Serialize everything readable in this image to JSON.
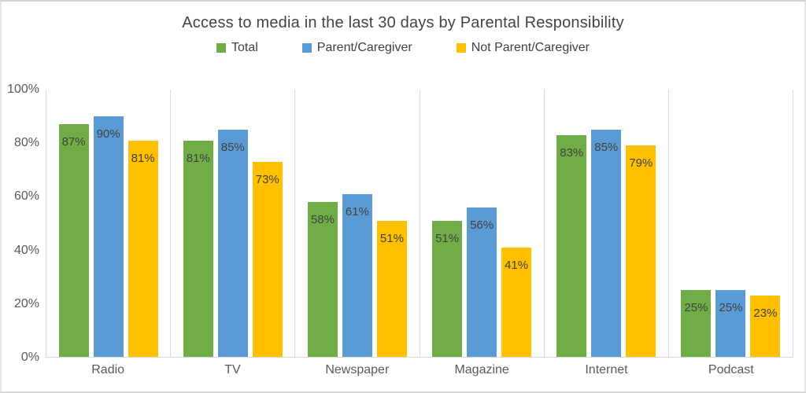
{
  "chart_data": {
    "type": "bar",
    "title": "Access to media in the last 30 days by Parental Responsibility",
    "xlabel": "",
    "ylabel": "",
    "ylim": [
      0,
      100
    ],
    "yticks": [
      {
        "value": 0,
        "label": "0%"
      },
      {
        "value": 20,
        "label": "20%"
      },
      {
        "value": 40,
        "label": "40%"
      },
      {
        "value": 60,
        "label": "60%"
      },
      {
        "value": 80,
        "label": "80%"
      },
      {
        "value": 100,
        "label": "100%"
      }
    ],
    "categories": [
      "Radio",
      "TV",
      "Newspaper",
      "Magazine",
      "Internet",
      "Podcast"
    ],
    "series": [
      {
        "name": "Total",
        "color": "#70AD47",
        "values": [
          87,
          81,
          58,
          51,
          83,
          25
        ]
      },
      {
        "name": "Parent/Caregiver",
        "color": "#5B9BD5",
        "values": [
          90,
          85,
          61,
          56,
          85,
          25
        ]
      },
      {
        "name": "Not Parent/Caregiver",
        "color": "#FFC000",
        "values": [
          81,
          73,
          51,
          41,
          79,
          23
        ]
      }
    ],
    "data_label_suffix": "%",
    "data_labels": "inside-end",
    "legend_position": "top",
    "grid": "vertical-category-separators-only",
    "colors": {
      "grid": "#D9D9D9",
      "axis_text": "#595959",
      "data_label_text": "#404040",
      "title_text": "#444444",
      "background": "#FFFFFF"
    }
  }
}
